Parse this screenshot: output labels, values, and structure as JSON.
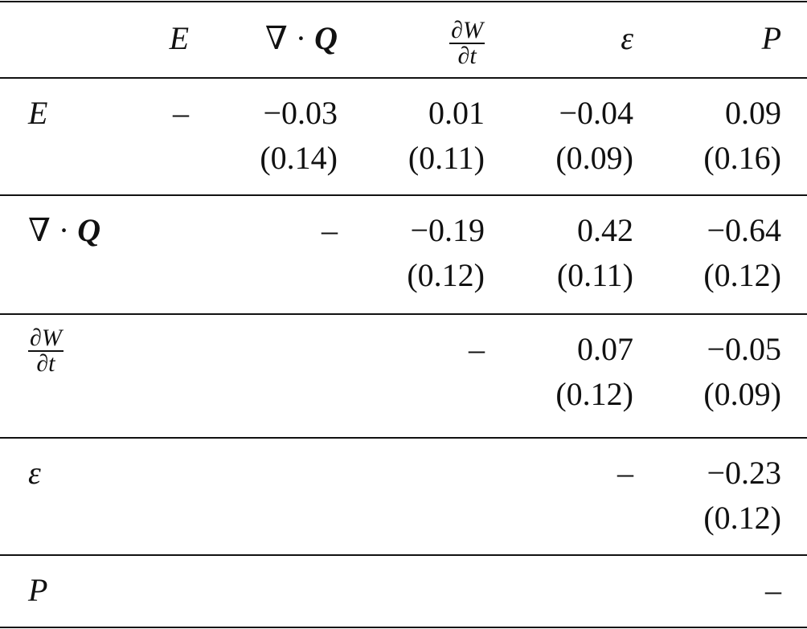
{
  "header": {
    "columns": [
      "E",
      {
        "operator": "∇ ·",
        "symbol": "Q"
      },
      {
        "numerator": "∂W",
        "denominator": "∂t"
      },
      "ε",
      "P"
    ]
  },
  "rows": [
    {
      "label": "E",
      "cells": [
        {
          "value": "–"
        },
        {
          "value": "−0.03",
          "se": "(0.14)"
        },
        {
          "value": "0.01",
          "se": "(0.11)"
        },
        {
          "value": "−0.04",
          "se": "(0.09)"
        },
        {
          "value": "0.09",
          "se": "(0.16)"
        }
      ]
    },
    {
      "label": {
        "operator": "∇ ·",
        "symbol": "Q"
      },
      "cells": [
        {
          "value": "–"
        },
        {
          "value": "−0.19",
          "se": "(0.12)"
        },
        {
          "value": "0.42",
          "se": "(0.11)"
        },
        {
          "value": "−0.64",
          "se": "(0.12)"
        }
      ]
    },
    {
      "label": {
        "numerator": "∂W",
        "denominator": "∂t"
      },
      "cells": [
        {
          "value": "–"
        },
        {
          "value": "0.07",
          "se": "(0.12)"
        },
        {
          "value": "−0.05",
          "se": "(0.09)"
        }
      ]
    },
    {
      "label": "ε",
      "cells": [
        {
          "value": "–"
        },
        {
          "value": "−0.23",
          "se": "(0.12)"
        }
      ]
    },
    {
      "label": "P",
      "cells": [
        {
          "value": "–"
        }
      ]
    }
  ]
}
